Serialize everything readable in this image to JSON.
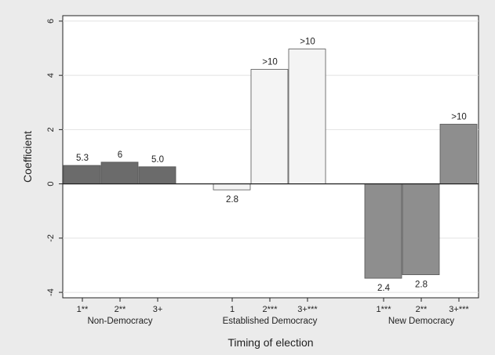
{
  "chart_data": {
    "type": "bar",
    "xlabel": "Timing of election",
    "ylabel": "Coefficient",
    "ylim": [
      -4.2,
      6.2
    ],
    "yticks": [
      -4,
      -2,
      0,
      2,
      4,
      6
    ],
    "ytick_labels": [
      "-4",
      "-2",
      "0",
      "2",
      "4",
      "6"
    ],
    "grid": "horizontal",
    "legend": "none",
    "groups": [
      {
        "name": "Non-Democracy",
        "color": "#6b6b6b",
        "bars": [
          {
            "category": "1**",
            "value": 0.68,
            "label": "5.3"
          },
          {
            "category": "2**",
            "value": 0.8,
            "label": "6"
          },
          {
            "category": "3+",
            "value": 0.63,
            "label": "5.0"
          }
        ]
      },
      {
        "name": "Established Democracy",
        "color": "#f4f4f4",
        "bars": [
          {
            "category": "1",
            "value": -0.22,
            "label": "2.8"
          },
          {
            "category": "2***",
            "value": 4.22,
            "label": ">10"
          },
          {
            "category": "3+***",
            "value": 4.97,
            "label": ">10"
          }
        ]
      },
      {
        "name": "New Democracy",
        "color": "#8e8e8e",
        "bars": [
          {
            "category": "1***",
            "value": -3.48,
            "label": "2.4"
          },
          {
            "category": "2**",
            "value": -3.35,
            "label": "2.8"
          },
          {
            "category": "3+***",
            "value": 2.2,
            "label": ">10"
          }
        ]
      }
    ]
  }
}
